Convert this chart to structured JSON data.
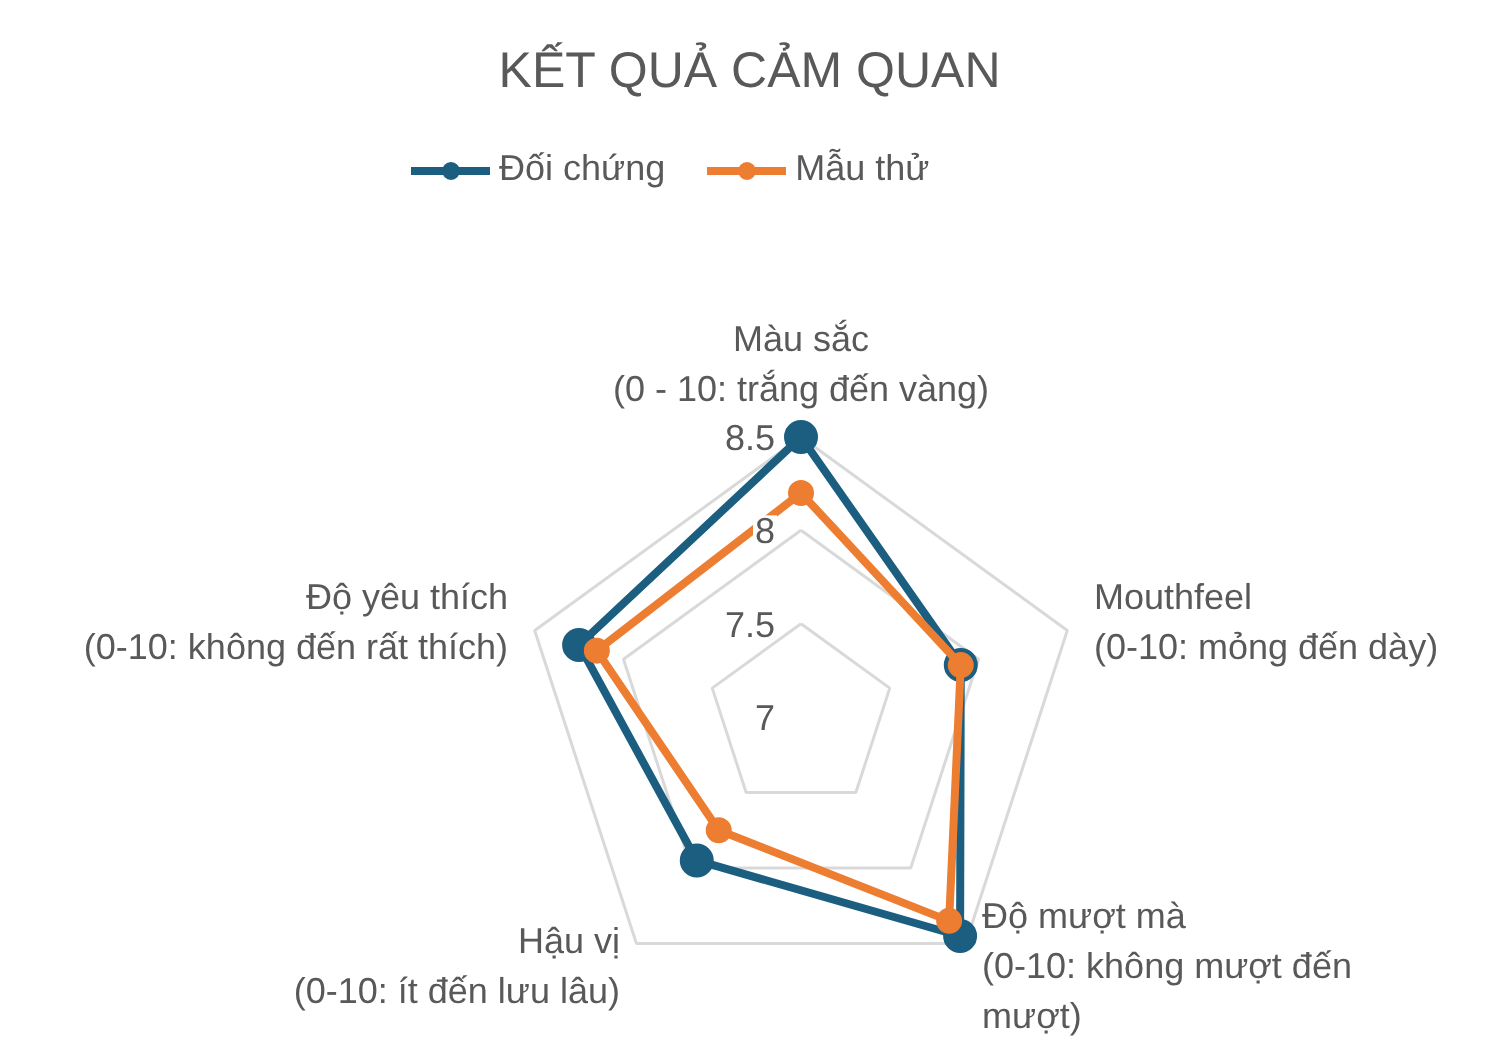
{
  "chart_data": {
    "type": "radar",
    "title": "KẾT QUẢ CẢM QUAN",
    "categories": [
      "Màu sắc\n(0 - 10: trắng đến vàng)",
      "Mouthfeel\n(0-10: mỏng đến dày)",
      "Độ mượt mà\n(0-10: không mượt đến\nmượt)",
      "Hậu vị\n(0-10: ít đến lưu lâu)",
      "Độ yêu thích\n(0-10: không đến rất thích)"
    ],
    "series": [
      {
        "name": "Đối chứng",
        "color": "#1b5e80",
        "values": [
          8.5,
          7.9,
          8.45,
          7.95,
          8.25
        ]
      },
      {
        "name": "Mẫu thử",
        "color": "#ed7d31",
        "values": [
          8.2,
          7.9,
          8.35,
          7.75,
          8.15
        ]
      }
    ],
    "ylim": [
      7,
      8.5
    ],
    "yticks": [
      7,
      7.5,
      8,
      8.5
    ],
    "grid": true,
    "legend": "top",
    "marker": "circle",
    "line_style": "solid"
  }
}
